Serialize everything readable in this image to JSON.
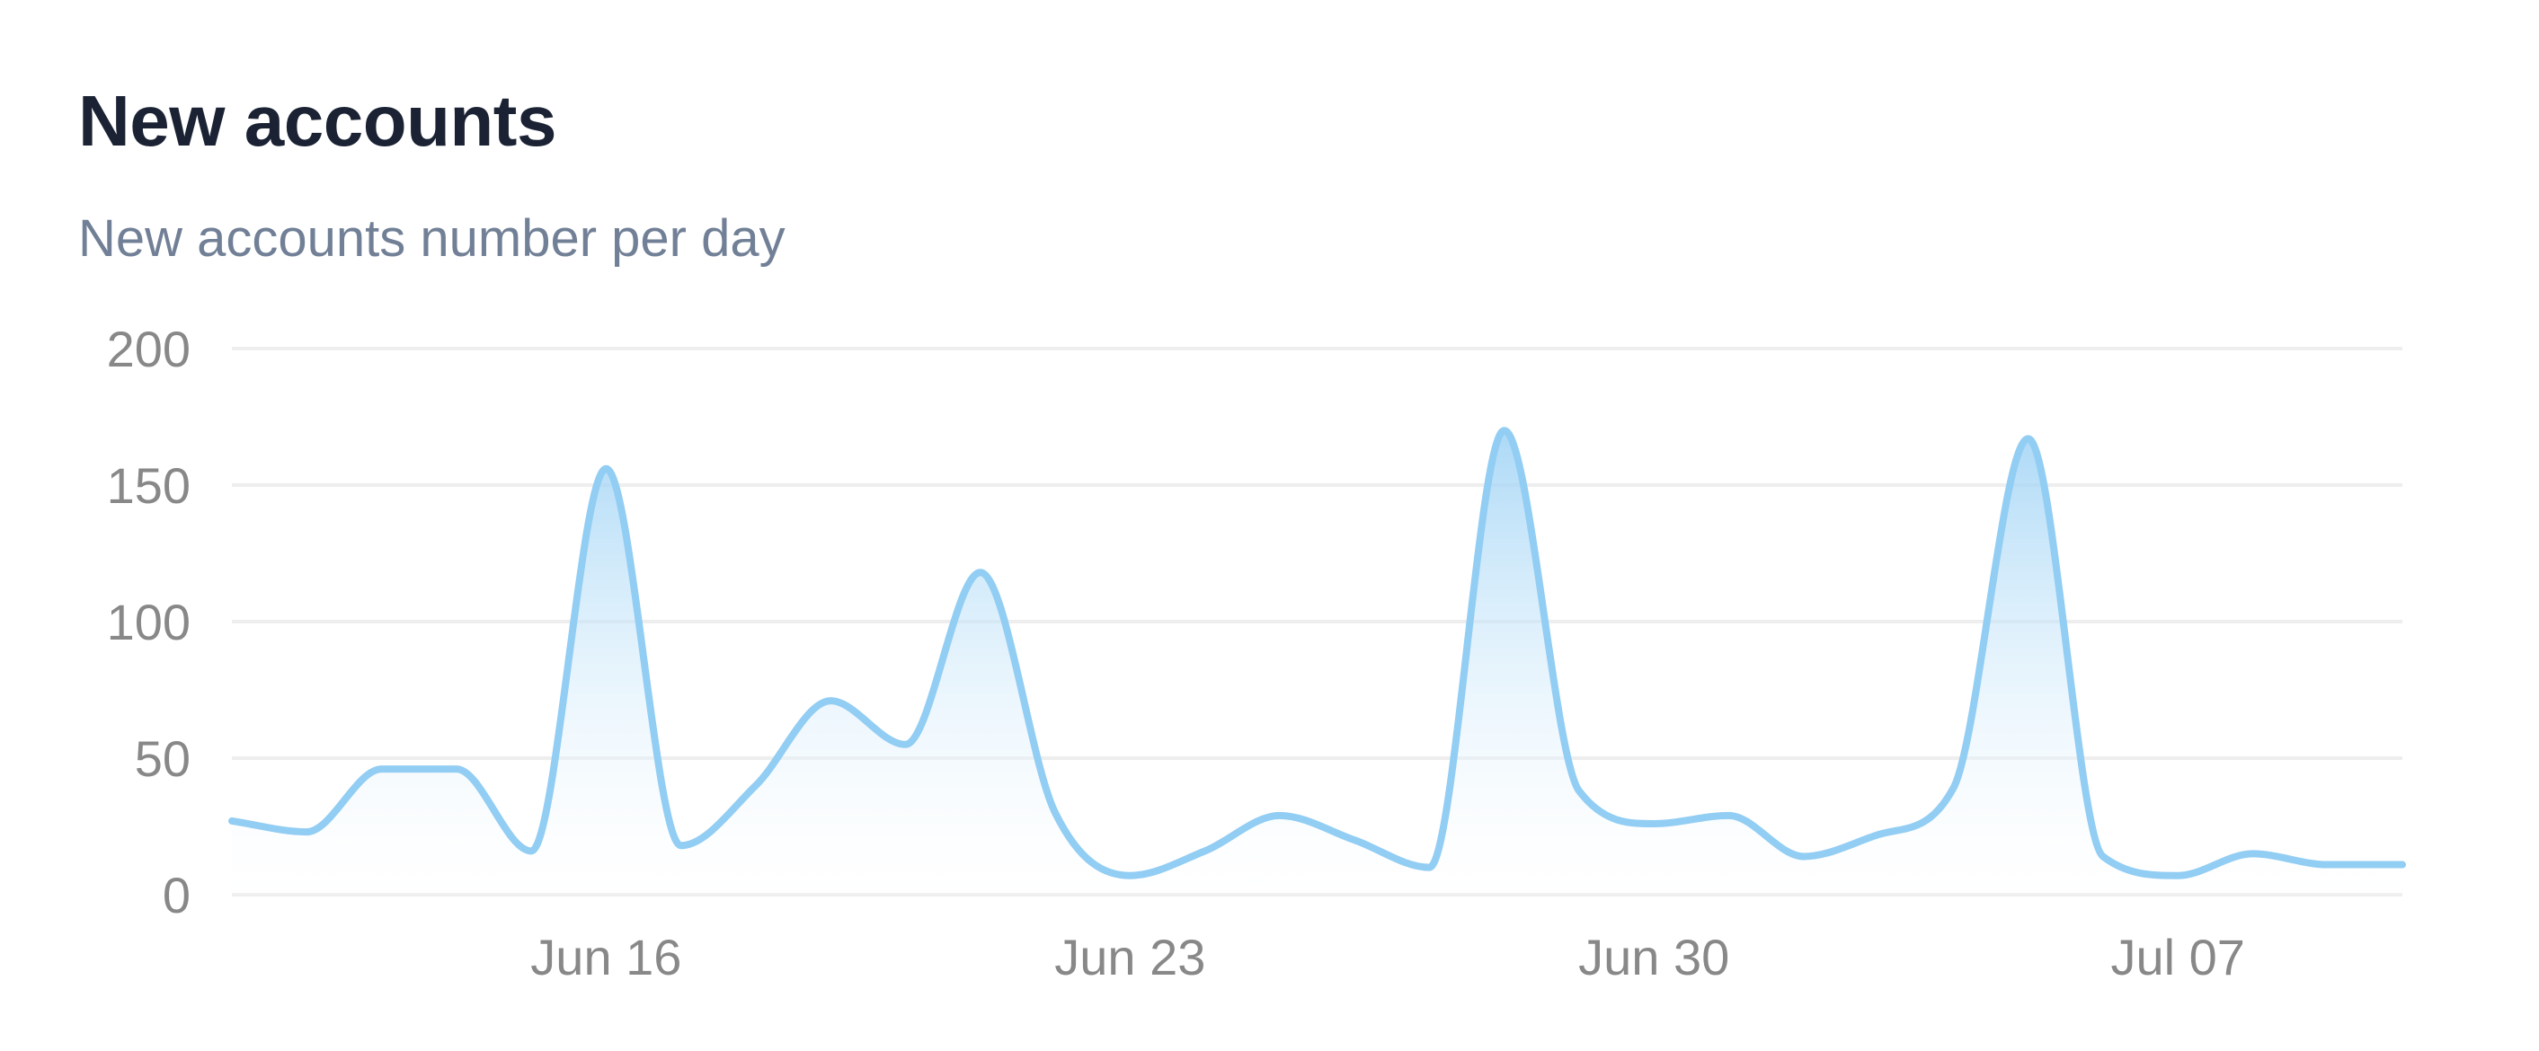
{
  "header": {
    "title": "New accounts",
    "subtitle": "New accounts number per day"
  },
  "chart_data": {
    "type": "area",
    "title": "New accounts",
    "subtitle": "New accounts number per day",
    "xlabel": "",
    "ylabel": "",
    "ylim": [
      0,
      200
    ],
    "y_ticks": [
      0,
      50,
      100,
      150,
      200
    ],
    "x_tick_labels": [
      {
        "date": "2024-06-16",
        "label": "Jun 16"
      },
      {
        "date": "2024-06-23",
        "label": "Jun 23"
      },
      {
        "date": "2024-06-30",
        "label": "Jun 30"
      },
      {
        "date": "2024-07-07",
        "label": "Jul 07"
      }
    ],
    "grid": true,
    "legend": "none",
    "colors": {
      "line": "#92cdf3",
      "fill_top": "#9dd2f5",
      "fill_bottom": "#ffffff",
      "grid": "#eeeeee",
      "tick_text": "#888888"
    },
    "series": [
      {
        "x": [
          "2024-06-11",
          "2024-06-12",
          "2024-06-13",
          "2024-06-14",
          "2024-06-15",
          "2024-06-16",
          "2024-06-17",
          "2024-06-18",
          "2024-06-19",
          "2024-06-20",
          "2024-06-21",
          "2024-06-22",
          "2024-06-23",
          "2024-06-24",
          "2024-06-25",
          "2024-06-26",
          "2024-06-27",
          "2024-06-28",
          "2024-06-29",
          "2024-06-30",
          "2024-07-01",
          "2024-07-02",
          "2024-07-03",
          "2024-07-04",
          "2024-07-05",
          "2024-07-06",
          "2024-07-07",
          "2024-07-08",
          "2024-07-09",
          "2024-07-10"
        ],
        "values": [
          27,
          23,
          46,
          46,
          16,
          156,
          18,
          40,
          71,
          55,
          118,
          30,
          7,
          16,
          29,
          20,
          10,
          170,
          38,
          26,
          29,
          14,
          22,
          39,
          167,
          14,
          7,
          15,
          11,
          11
        ]
      }
    ]
  }
}
